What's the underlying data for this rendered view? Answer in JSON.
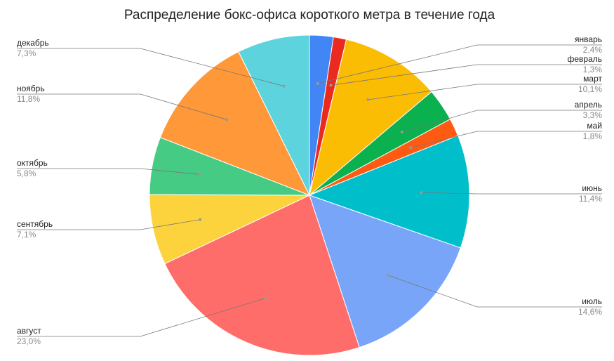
{
  "chart_data": {
    "type": "pie",
    "title": "Распределение бокс-офиса короткого метра в течение года",
    "categories": [
      "январь",
      "февраль",
      "март",
      "апрель",
      "май",
      "июнь",
      "июль",
      "август",
      "сентябрь",
      "октябрь",
      "ноябрь",
      "декабрь"
    ],
    "values": [
      2.4,
      1.3,
      10.1,
      3.3,
      1.8,
      11.4,
      14.6,
      23.0,
      7.1,
      5.8,
      11.8,
      7.3
    ],
    "value_labels": [
      "2,4%",
      "1,3%",
      "10,1%",
      "3,3%",
      "1,8%",
      "11,4%",
      "14,6%",
      "23,0%",
      "7,1%",
      "5,8%",
      "11,8%",
      "7,3%"
    ],
    "colors": [
      "#4285f4",
      "#ea2a1f",
      "#fbbc04",
      "#0bb04f",
      "#ff5a12",
      "#00bfcb",
      "#78a5f8",
      "#ff6d6a",
      "#fdd33d",
      "#46cb84",
      "#ff9838",
      "#5cd3dd"
    ]
  }
}
